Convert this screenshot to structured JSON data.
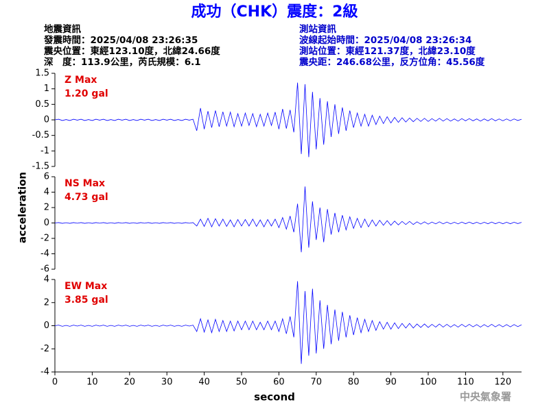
{
  "title": "成功（CHK）震度：2級",
  "info": {
    "left": [
      "地震資訊",
      "發震時間：2025/04/08 23:26:35",
      "震央位置：東經123.10度，北緯24.66度",
      "深　度：113.9公里，芮氏規模：6.1"
    ],
    "right": [
      "測站資訊",
      "波線起始時間：2025/04/08 23:26:34",
      "測站位置：東經121.37度，北緯23.10度",
      "震央距：246.68公里，反方位角：45.56度"
    ]
  },
  "y_label": "acceleration",
  "x_label": "second",
  "footer": "中央氣象署",
  "chart_data": [
    {
      "type": "line",
      "max_label": "Z Max",
      "max_value": "1.20 gal",
      "color": "#0000ff",
      "xlim": [
        0,
        125
      ],
      "ylim": [
        -1.5,
        1.5
      ],
      "yticks": [
        -1.5,
        -1,
        -0.5,
        0,
        0.5,
        1,
        1.5
      ],
      "x": [
        0,
        1,
        2,
        3,
        4,
        5,
        6,
        7,
        8,
        9,
        10,
        11,
        12,
        13,
        14,
        15,
        16,
        17,
        18,
        19,
        20,
        21,
        22,
        23,
        24,
        25,
        26,
        27,
        28,
        29,
        30,
        31,
        32,
        33,
        34,
        35,
        36,
        37,
        38,
        39,
        40,
        41,
        42,
        43,
        44,
        45,
        46,
        47,
        48,
        49,
        50,
        51,
        52,
        53,
        54,
        55,
        56,
        57,
        58,
        59,
        60,
        61,
        62,
        63,
        64,
        65,
        66,
        67,
        68,
        69,
        70,
        71,
        72,
        73,
        74,
        75,
        76,
        77,
        78,
        79,
        80,
        81,
        82,
        83,
        84,
        85,
        86,
        87,
        88,
        89,
        90,
        91,
        92,
        93,
        94,
        95,
        96,
        97,
        98,
        99,
        100,
        101,
        102,
        103,
        104,
        105,
        106,
        107,
        108,
        109,
        110,
        111,
        112,
        113,
        114,
        115,
        116,
        117,
        118,
        119,
        120,
        121,
        122,
        123,
        124,
        125
      ],
      "values": [
        0,
        0.02,
        -0.02,
        0.01,
        -0.02,
        0.02,
        -0.01,
        0.02,
        -0.02,
        0.01,
        -0.02,
        0.02,
        -0.01,
        0.02,
        -0.02,
        0.01,
        -0.02,
        0.02,
        -0.01,
        0.02,
        -0.02,
        0.01,
        -0.02,
        0.02,
        -0.01,
        0.02,
        -0.02,
        0.01,
        -0.02,
        0.02,
        -0.01,
        0.02,
        -0.02,
        0.01,
        -0.02,
        0.02,
        -0.01,
        0.02,
        -0.35,
        0.38,
        -0.3,
        0.28,
        -0.25,
        0.3,
        -0.22,
        0.26,
        -0.2,
        0.25,
        -0.22,
        0.2,
        -0.2,
        0.22,
        -0.18,
        0.2,
        -0.22,
        0.18,
        -0.2,
        0.22,
        -0.18,
        0.25,
        -0.3,
        0.35,
        -0.28,
        0.32,
        -0.4,
        1.2,
        -1.1,
        1.15,
        -1.2,
        0.9,
        -0.95,
        0.7,
        -0.8,
        0.6,
        -0.55,
        0.5,
        -0.45,
        0.4,
        -0.35,
        0.3,
        -0.25,
        0.22,
        -0.2,
        0.18,
        -0.2,
        0.15,
        -0.15,
        0.12,
        -0.12,
        0.1,
        -0.1,
        0.08,
        -0.08,
        0.07,
        -0.07,
        0.06,
        -0.06,
        0.05,
        -0.05,
        0.05,
        -0.05,
        0.04,
        -0.04,
        0.05,
        -0.04,
        0.04,
        -0.04,
        0.03,
        -0.04,
        0.04,
        -0.03,
        0.04,
        -0.03,
        0.03,
        -0.04,
        0.03,
        -0.03,
        0.04,
        -0.03,
        0.03,
        -0.03,
        0.03,
        -0.03,
        0.03,
        -0.02,
        0.02
      ]
    },
    {
      "type": "line",
      "max_label": "NS Max",
      "max_value": "4.73 gal",
      "color": "#0000ff",
      "xlim": [
        0,
        125
      ],
      "ylim": [
        -6,
        6
      ],
      "yticks": [
        -6,
        -4,
        -2,
        0,
        2,
        4,
        6
      ],
      "x": [
        0,
        1,
        2,
        3,
        4,
        5,
        6,
        7,
        8,
        9,
        10,
        11,
        12,
        13,
        14,
        15,
        16,
        17,
        18,
        19,
        20,
        21,
        22,
        23,
        24,
        25,
        26,
        27,
        28,
        29,
        30,
        31,
        32,
        33,
        34,
        35,
        36,
        37,
        38,
        39,
        40,
        41,
        42,
        43,
        44,
        45,
        46,
        47,
        48,
        49,
        50,
        51,
        52,
        53,
        54,
        55,
        56,
        57,
        58,
        59,
        60,
        61,
        62,
        63,
        64,
        65,
        66,
        67,
        68,
        69,
        70,
        71,
        72,
        73,
        74,
        75,
        76,
        77,
        78,
        79,
        80,
        81,
        82,
        83,
        84,
        85,
        86,
        87,
        88,
        89,
        90,
        91,
        92,
        93,
        94,
        95,
        96,
        97,
        98,
        99,
        100,
        101,
        102,
        103,
        104,
        105,
        106,
        107,
        108,
        109,
        110,
        111,
        112,
        113,
        114,
        115,
        116,
        117,
        118,
        119,
        120,
        121,
        122,
        123,
        124,
        125
      ],
      "values": [
        0,
        0.05,
        -0.05,
        0.03,
        -0.05,
        0.05,
        -0.03,
        0.05,
        -0.05,
        0.03,
        -0.05,
        0.05,
        -0.03,
        0.05,
        -0.05,
        0.03,
        -0.05,
        0.05,
        -0.03,
        0.05,
        -0.05,
        0.03,
        -0.05,
        0.05,
        -0.03,
        0.05,
        -0.05,
        0.03,
        -0.05,
        0.05,
        -0.03,
        0.05,
        -0.05,
        0.03,
        -0.05,
        0.05,
        -0.03,
        0.05,
        -0.4,
        0.5,
        -0.45,
        0.6,
        -0.5,
        0.55,
        -0.4,
        0.5,
        -0.45,
        0.4,
        -0.5,
        0.45,
        -0.4,
        0.45,
        -0.4,
        0.5,
        -0.45,
        0.4,
        -0.5,
        0.45,
        -0.4,
        0.5,
        -0.6,
        0.7,
        -0.8,
        0.9,
        -1.2,
        2.5,
        -3.8,
        4.73,
        -3.2,
        2.8,
        -2.2,
        2.0,
        -2.5,
        1.8,
        -1.5,
        1.3,
        -1.2,
        1.0,
        -0.9,
        0.8,
        -0.7,
        0.6,
        -0.6,
        0.5,
        -0.5,
        0.4,
        -0.4,
        0.35,
        -0.3,
        0.3,
        -0.3,
        0.25,
        -0.25,
        0.2,
        -0.2,
        0.2,
        -0.2,
        0.15,
        -0.15,
        0.15,
        -0.15,
        0.12,
        -0.12,
        0.15,
        -0.12,
        0.12,
        -0.12,
        0.1,
        -0.12,
        0.12,
        -0.1,
        0.12,
        -0.1,
        0.1,
        -0.12,
        0.1,
        -0.1,
        0.12,
        -0.1,
        0.1,
        -0.1,
        0.1,
        -0.1,
        0.1,
        -0.08,
        0.08
      ]
    },
    {
      "type": "line",
      "max_label": "EW Max",
      "max_value": "3.85 gal",
      "color": "#0000ff",
      "xlim": [
        0,
        125
      ],
      "ylim": [
        -4,
        4
      ],
      "yticks": [
        -4,
        -2,
        0,
        2,
        4
      ],
      "xticks": [
        0,
        10,
        20,
        30,
        40,
        50,
        60,
        70,
        80,
        90,
        100,
        110,
        120
      ],
      "x": [
        0,
        1,
        2,
        3,
        4,
        5,
        6,
        7,
        8,
        9,
        10,
        11,
        12,
        13,
        14,
        15,
        16,
        17,
        18,
        19,
        20,
        21,
        22,
        23,
        24,
        25,
        26,
        27,
        28,
        29,
        30,
        31,
        32,
        33,
        34,
        35,
        36,
        37,
        38,
        39,
        40,
        41,
        42,
        43,
        44,
        45,
        46,
        47,
        48,
        49,
        50,
        51,
        52,
        53,
        54,
        55,
        56,
        57,
        58,
        59,
        60,
        61,
        62,
        63,
        64,
        65,
        66,
        67,
        68,
        69,
        70,
        71,
        72,
        73,
        74,
        75,
        76,
        77,
        78,
        79,
        80,
        81,
        82,
        83,
        84,
        85,
        86,
        87,
        88,
        89,
        90,
        91,
        92,
        93,
        94,
        95,
        96,
        97,
        98,
        99,
        100,
        101,
        102,
        103,
        104,
        105,
        106,
        107,
        108,
        109,
        110,
        111,
        112,
        113,
        114,
        115,
        116,
        117,
        118,
        119,
        120,
        121,
        122,
        123,
        124,
        125
      ],
      "values": [
        0,
        0.05,
        -0.05,
        0.03,
        -0.05,
        0.05,
        -0.03,
        0.05,
        -0.05,
        0.03,
        -0.05,
        0.05,
        -0.03,
        0.05,
        -0.05,
        0.03,
        -0.05,
        0.05,
        -0.03,
        0.05,
        -0.05,
        0.03,
        -0.05,
        0.05,
        -0.03,
        0.05,
        -0.05,
        0.03,
        -0.05,
        0.05,
        -0.03,
        0.05,
        -0.05,
        0.03,
        -0.05,
        0.05,
        -0.03,
        0.05,
        -0.5,
        0.6,
        -0.55,
        0.5,
        -0.6,
        0.55,
        -0.5,
        0.45,
        -0.5,
        0.4,
        -0.45,
        0.4,
        -0.35,
        0.4,
        -0.35,
        0.4,
        -0.35,
        0.3,
        -0.35,
        0.4,
        -0.35,
        0.4,
        -0.5,
        0.6,
        -0.7,
        0.8,
        -1.0,
        3.85,
        -3.3,
        3.0,
        -2.6,
        3.2,
        -2.4,
        2.2,
        -2.0,
        1.8,
        -1.6,
        1.4,
        -1.3,
        1.2,
        -1.0,
        0.9,
        -0.8,
        0.7,
        -0.6,
        0.55,
        -0.5,
        0.45,
        -0.4,
        0.35,
        -0.3,
        0.3,
        -0.3,
        0.25,
        -0.25,
        0.2,
        -0.2,
        0.2,
        -0.2,
        0.15,
        -0.15,
        0.15,
        -0.15,
        0.12,
        -0.12,
        0.15,
        -0.12,
        0.12,
        -0.12,
        0.1,
        -0.12,
        0.12,
        -0.1,
        0.12,
        -0.1,
        0.1,
        -0.12,
        0.1,
        -0.1,
        0.12,
        -0.1,
        0.1,
        -0.1,
        0.1,
        -0.1,
        0.1,
        -0.08,
        0.08
      ]
    }
  ]
}
